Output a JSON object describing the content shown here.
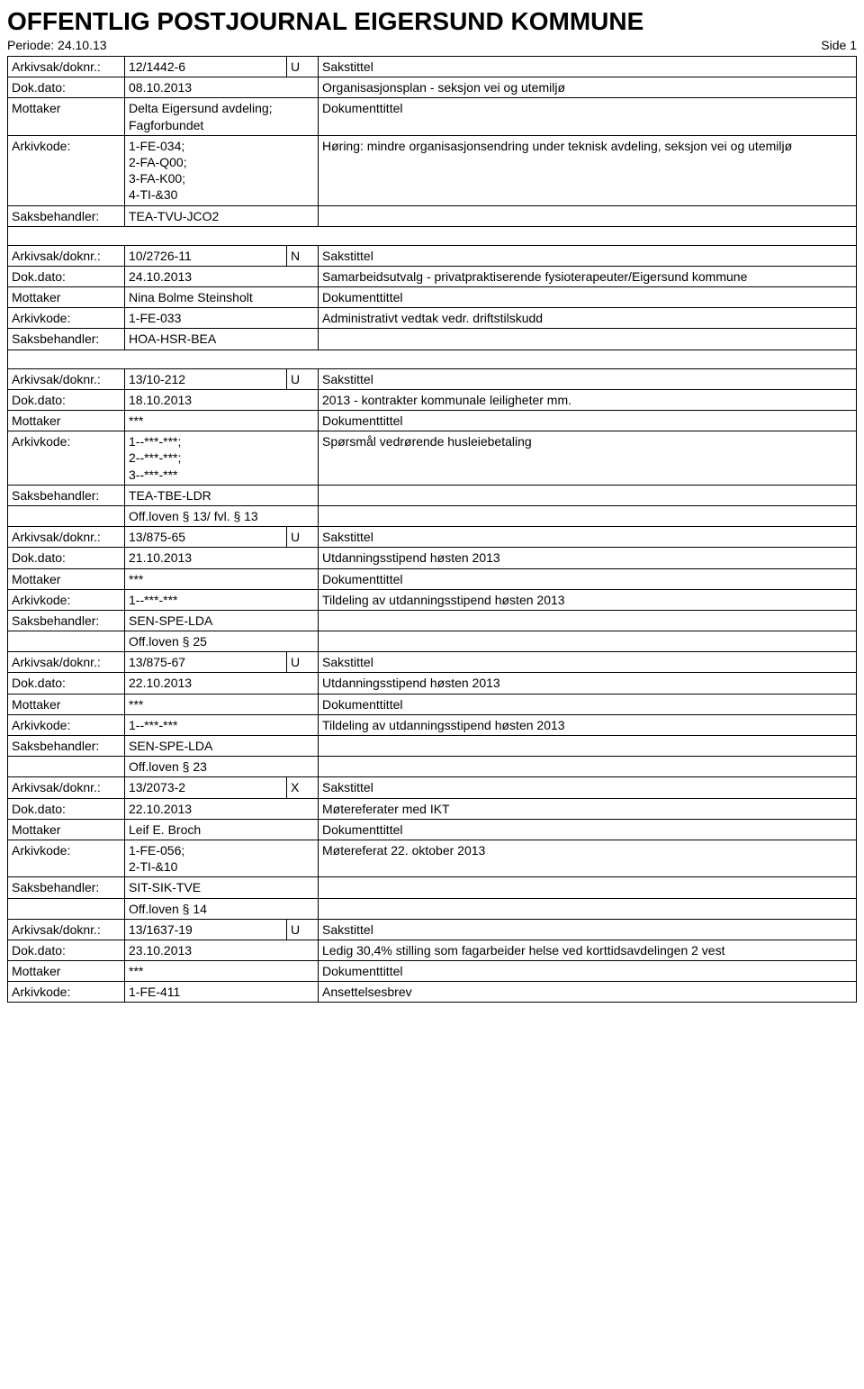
{
  "header": {
    "title": "OFFENTLIG POSTJOURNAL EIGERSUND KOMMUNE",
    "periode_label": "Periode: 24.10.13",
    "side_label": "Side 1"
  },
  "labels": {
    "arkivsak": "Arkivsak/doknr.:",
    "dokdato": "Dok.dato:",
    "mottaker": "Mottaker",
    "arkivkode": "Arkivkode:",
    "saksbehandler": "Saksbehandler:",
    "sakstittel": "Sakstittel",
    "dokumenttittel": "Dokumenttittel"
  },
  "entries": [
    {
      "arkivsak": "12/1442-6",
      "code": "U",
      "dokdato": "08.10.2013",
      "mottaker": "Delta Eigersund avdeling;\nFagforbundet",
      "arkivkode": "1-FE-034;\n2-FA-Q00;\n3-FA-K00;\n4-TI-&30",
      "saksbehandler": "TEA-TVU-JCO2",
      "sakstittel": "Organisasjonsplan - seksjon vei og utemiljø",
      "dokumenttittel": "Høring: mindre organisasjonsendring under teknisk avdeling, seksjon vei og utemiljø",
      "spacer_after": true
    },
    {
      "arkivsak": "10/2726-11",
      "code": "N",
      "dokdato": "24.10.2013",
      "mottaker": "Nina Bolme Steinsholt",
      "arkivkode": "1-FE-033",
      "saksbehandler": "HOA-HSR-BEA",
      "sakstittel": "Samarbeidsutvalg - privatpraktiserende fysioterapeuter/Eigersund kommune",
      "dokumenttittel": "Administrativt vedtak vedr. driftstilskudd",
      "spacer_after": true
    },
    {
      "arkivsak": "13/10-212",
      "code": "U",
      "dokdato": "18.10.2013",
      "mottaker": "***",
      "arkivkode": "1--***-***;\n2--***-***;\n3--***-***",
      "saksbehandler": "TEA-TBE-LDR",
      "offloven": "Off.loven § 13/ fvl. § 13",
      "sakstittel": "2013 - kontrakter kommunale leiligheter mm.",
      "dokumenttittel": "Spørsmål vedrørende husleiebetaling"
    },
    {
      "arkivsak": "13/875-65",
      "code": "U",
      "dokdato": "21.10.2013",
      "mottaker": "***",
      "arkivkode": "1--***-***",
      "saksbehandler": "SEN-SPE-LDA",
      "offloven": "Off.loven § 25",
      "sakstittel": "Utdanningsstipend høsten 2013",
      "dokumenttittel": "Tildeling av utdanningsstipend høsten 2013"
    },
    {
      "arkivsak": "13/875-67",
      "code": "U",
      "dokdato": "22.10.2013",
      "mottaker": "***",
      "arkivkode": "1--***-***",
      "saksbehandler": "SEN-SPE-LDA",
      "offloven": "Off.loven § 23",
      "sakstittel": "Utdanningsstipend høsten 2013",
      "dokumenttittel": "Tildeling av utdanningsstipend høsten 2013"
    },
    {
      "arkivsak": "13/2073-2",
      "code": "X",
      "dokdato": "22.10.2013",
      "mottaker": "Leif E. Broch",
      "arkivkode": "1-FE-056;\n2-TI-&10",
      "saksbehandler": "SIT-SIK-TVE",
      "offloven": "Off.loven § 14",
      "sakstittel": "Møtereferater med IKT",
      "dokumenttittel": "Møtereferat 22. oktober 2013"
    },
    {
      "arkivsak": "13/1637-19",
      "code": "U",
      "dokdato": "23.10.2013",
      "mottaker": "***",
      "arkivkode": "1-FE-411",
      "sakstittel": "Ledig 30,4% stilling som fagarbeider helse ved korttidsavdelingen 2 vest",
      "dokumenttittel": "Ansettelsesbrev"
    }
  ]
}
